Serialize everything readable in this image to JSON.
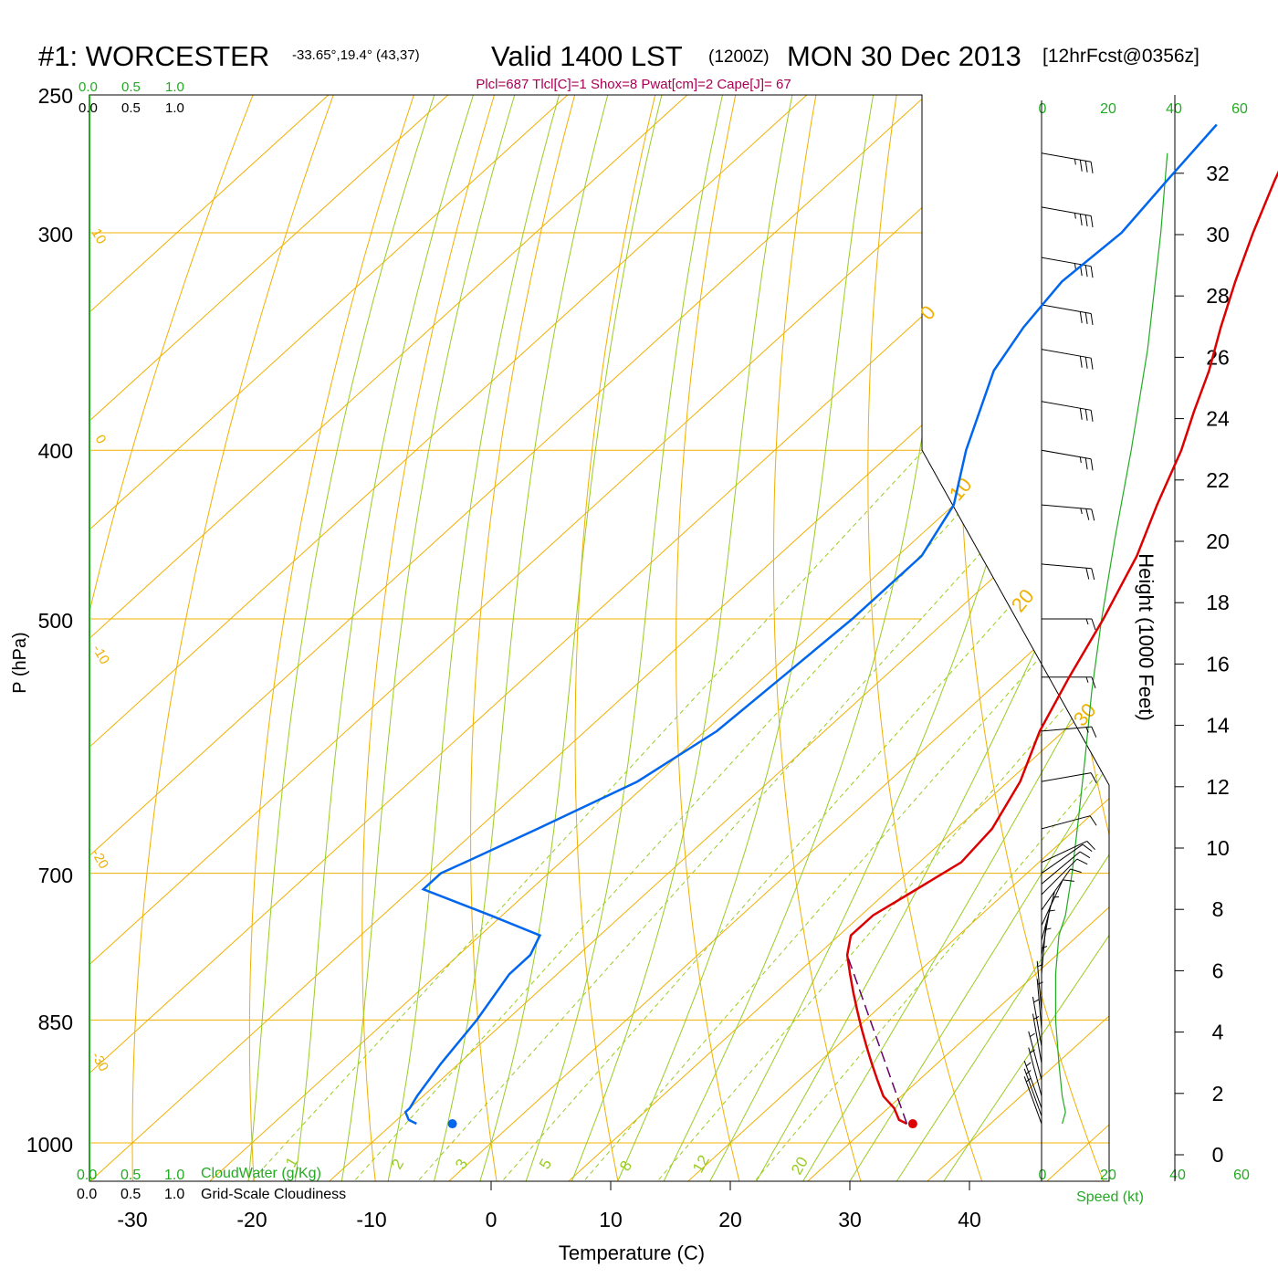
{
  "header": {
    "station": "#1: WORCESTER",
    "coords": "-33.65°,19.4° (43,37)",
    "valid": "Valid 1400 LST",
    "zulu": "(1200Z)",
    "date": "MON 30 Dec 2013",
    "forecast": "[12hrFcst@0356z]",
    "params": "Plcl=687 Tlcl[C]=1 Shox=8 Pwat[cm]=2 Cape[J]= 67"
  },
  "colors": {
    "temperature": "#dd0000",
    "dewpoint": "#0066ee",
    "isotherm": "#f0b000",
    "dry_adiabat": "#f0b000",
    "moist_adiabat": "#99cc22",
    "mixing_ratio": "#99cc22",
    "parcel": "#660066",
    "cloud": "#22aa22",
    "speed": "#22aa22",
    "params": "#aa0055"
  },
  "chart_data": {
    "type": "skew-t",
    "xlabel": "Temperature (C)",
    "ylabel": "P (hPa)",
    "y2label": "Height (1000 Feet)",
    "x_ticks": [
      -30,
      -20,
      -10,
      0,
      10,
      20,
      30,
      40
    ],
    "pressure_ticks": [
      250,
      300,
      400,
      500,
      700,
      850,
      1000
    ],
    "height_ticks": [
      0,
      2,
      4,
      6,
      8,
      10,
      12,
      14,
      16,
      18,
      20,
      22,
      24,
      26,
      28,
      30,
      32
    ],
    "isotherm_labels": [
      "10",
      "0",
      "-10",
      "-20",
      "-30"
    ],
    "dry_adiabat_labels": [
      "0",
      "10",
      "20",
      "30"
    ],
    "mixing_ratio_labels": [
      "1",
      "2",
      "3",
      "5",
      "8",
      "12",
      "20"
    ],
    "cloud_axis_ticks": [
      "0.0",
      "0.5",
      "1.0"
    ],
    "cloudwater_label": "CloudWater (g/Kg)",
    "cloudiness_label": "Grid-Scale Cloudiness",
    "speed_ticks": [
      "0",
      "20",
      "40",
      "60"
    ],
    "speed_label": "Speed (kt)",
    "temperature": {
      "p": [
        260,
        280,
        300,
        320,
        340,
        360,
        380,
        400,
        430,
        460,
        500,
        540,
        580,
        620,
        660,
        690,
        700,
        720,
        740,
        760,
        780,
        800,
        820,
        840,
        860,
        880,
        900,
        920,
        940,
        955,
        960,
        970,
        975
      ],
      "t": [
        -26,
        -23,
        -20,
        -17,
        -14,
        -11,
        -8.5,
        -6,
        -3,
        0,
        3,
        5.5,
        8,
        11,
        13,
        13.5,
        13,
        12,
        11,
        11,
        12.5,
        14.5,
        16.5,
        18.5,
        20.5,
        22.5,
        24.5,
        26.5,
        28.5,
        30.5,
        31,
        32,
        33
      ]
    },
    "dewpoint": {
      "p": [
        260,
        280,
        300,
        320,
        340,
        360,
        400,
        430,
        460,
        500,
        540,
        580,
        620,
        660,
        690,
        700,
        715,
        740,
        760,
        780,
        800,
        850,
        900,
        940,
        955,
        960,
        970,
        975
      ],
      "td": [
        -33,
        -32,
        -31,
        -31.5,
        -30.5,
        -29,
        -24,
        -20,
        -18,
        -18,
        -18.5,
        -19,
        -21,
        -25,
        -28,
        -29,
        -29,
        -21,
        -15,
        -14,
        -14,
        -12.5,
        -11.5,
        -10.5,
        -10,
        -10,
        -9,
        -8
      ]
    },
    "parcel": {
      "p": [
        975,
        780
      ],
      "t": [
        33,
        12.5
      ]
    },
    "surface_markers": {
      "p": 975,
      "t": 33.5,
      "td": -5
    },
    "wind_speed_kt": {
      "p": [
        975,
        960,
        940,
        900,
        850,
        800,
        760,
        740,
        700,
        650,
        600,
        550,
        500,
        450,
        400,
        350,
        300,
        270
      ],
      "kt": [
        6,
        7,
        6,
        5,
        4,
        4,
        5,
        7,
        9,
        11,
        13,
        15,
        18,
        22,
        27,
        32,
        36,
        38
      ]
    },
    "wind_barbs": {
      "p": [
        270,
        290,
        310,
        330,
        350,
        375,
        400,
        430,
        465,
        500,
        540,
        580,
        620,
        660,
        690,
        700,
        710,
        720,
        735,
        750,
        765,
        780,
        800,
        820,
        840,
        860,
        880,
        900,
        920,
        940,
        955,
        965,
        975
      ],
      "direction_deg": [
        280,
        280,
        280,
        280,
        280,
        280,
        280,
        275,
        275,
        270,
        270,
        265,
        260,
        255,
        245,
        235,
        230,
        225,
        215,
        205,
        195,
        190,
        185,
        180,
        175,
        175,
        170,
        170,
        165,
        165,
        160,
        160,
        160
      ],
      "speed_kt": [
        35,
        35,
        35,
        30,
        30,
        30,
        25,
        25,
        20,
        15,
        15,
        15,
        10,
        10,
        10,
        10,
        10,
        10,
        10,
        10,
        5,
        5,
        5,
        5,
        5,
        5,
        5,
        5,
        5,
        5,
        5,
        5,
        5
      ]
    }
  }
}
